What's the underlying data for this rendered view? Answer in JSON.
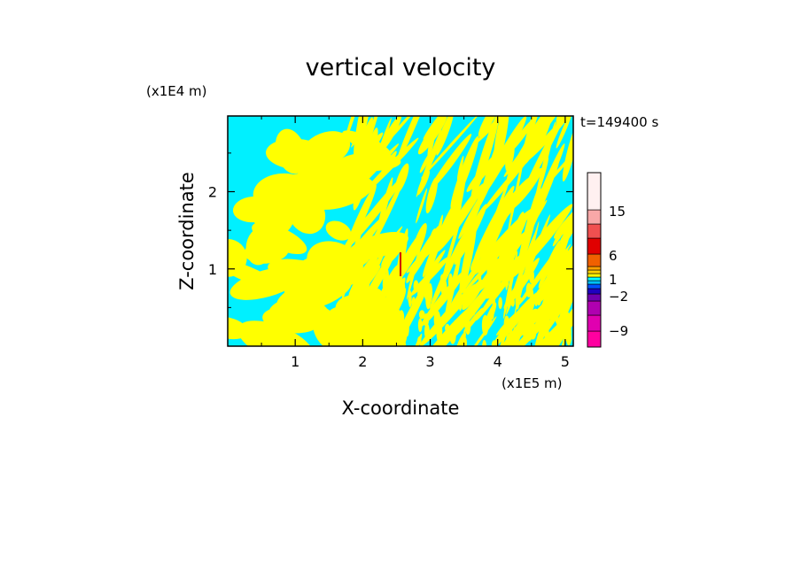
{
  "chart_data": {
    "type": "heatmap",
    "title": "vertical velocity",
    "timestamp": "t=149400 s",
    "xlabel": "X-coordinate",
    "ylabel": "Z-coordinate",
    "x_unit": "(x1E5 m)",
    "y_unit": "(x1E4 m)",
    "xlim": [
      0,
      5.12
    ],
    "ylim": [
      0,
      2.98
    ],
    "x_ticks": [
      "1",
      "2",
      "3",
      "4",
      "5"
    ],
    "y_ticks": [
      "1",
      "2"
    ],
    "field_colors": {
      "negative": "#00f0ff",
      "positive": "#ffff00"
    },
    "colorbar": {
      "levels": [
        {
          "color": "#ff00a0"
        },
        {
          "color": "#e000b0"
        },
        {
          "color": "#b000b0"
        },
        {
          "color": "#7000b0"
        },
        {
          "color": "#2000c0"
        },
        {
          "color": "#0050ff"
        },
        {
          "color": "#00c0ff"
        },
        {
          "color": "#00ffff"
        },
        {
          "color": "#ffff00"
        },
        {
          "color": "#ffd000"
        },
        {
          "color": "#ffa000"
        },
        {
          "color": "#f06000"
        },
        {
          "color": "#e00000"
        },
        {
          "color": "#f05050"
        },
        {
          "color": "#f8a8a8"
        },
        {
          "color": "#fff0f0"
        }
      ],
      "labels": [
        "15",
        "6",
        "1",
        "−2",
        "−9"
      ]
    }
  }
}
